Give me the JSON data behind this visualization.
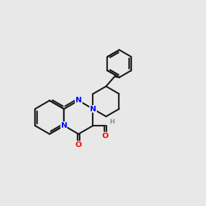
{
  "bg_color": "#e8e8e8",
  "bond_color": "#1a1a1a",
  "nitrogen_color": "#0000ff",
  "oxygen_color": "#ff0000",
  "aldehyde_h_color": "#5f9ea0",
  "lw": 1.6,
  "fs": 8.0,
  "xlim": [
    0,
    10
  ],
  "ylim": [
    0,
    10
  ]
}
